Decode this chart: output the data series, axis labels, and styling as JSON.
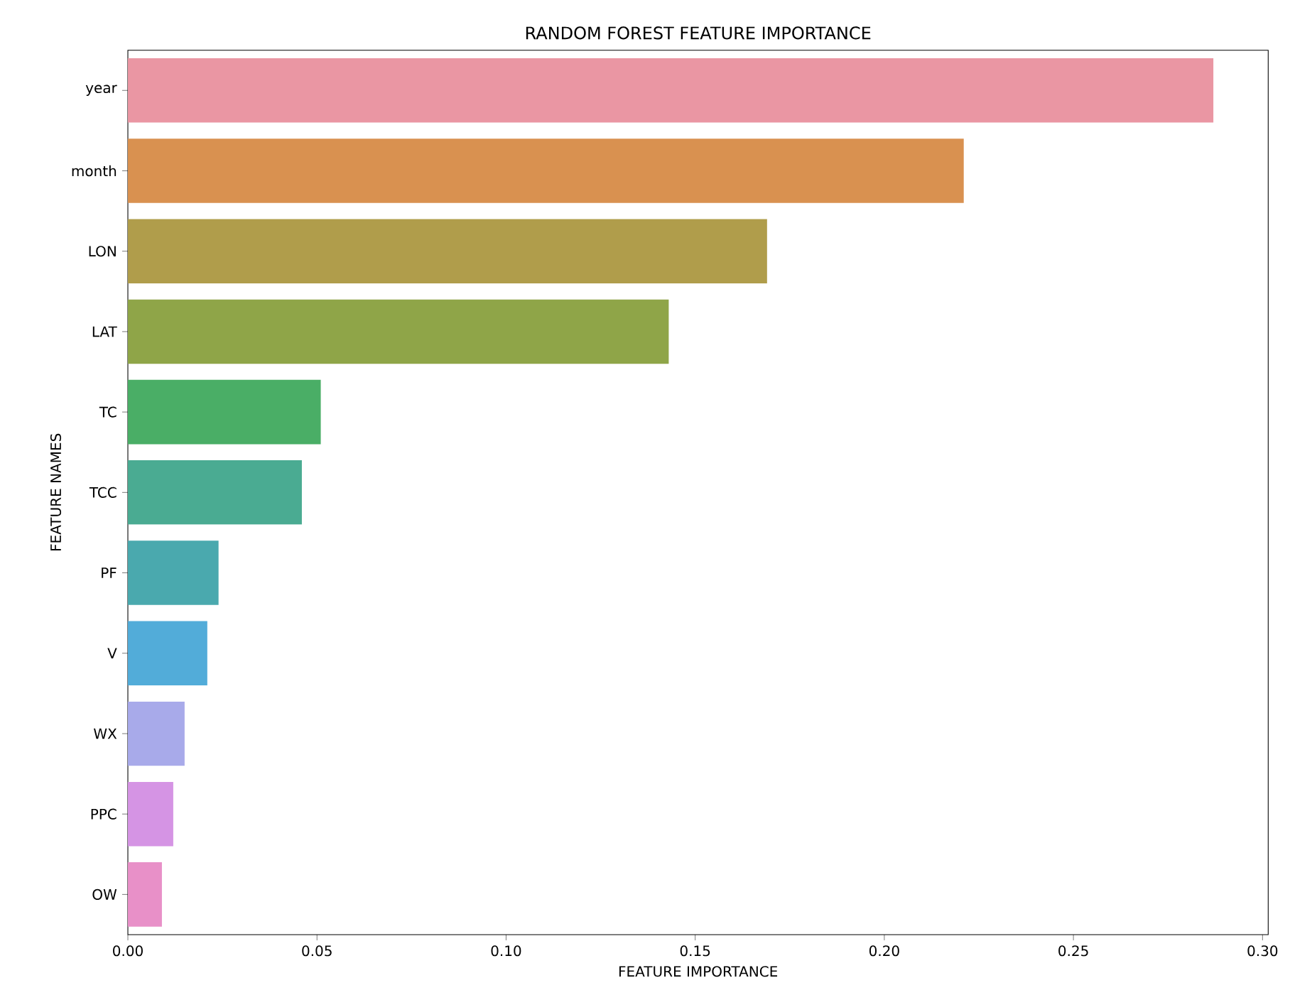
{
  "chart_data": {
    "type": "bar",
    "orientation": "horizontal",
    "title": "RANDOM FOREST FEATURE IMPORTANCE",
    "xlabel": "FEATURE IMPORTANCE",
    "ylabel": "FEATURE NAMES",
    "categories": [
      "year",
      "month",
      "LON",
      "LAT",
      "TC",
      "TCC",
      "PF",
      "V",
      "WX",
      "PPC",
      "OW"
    ],
    "values": [
      0.287,
      0.221,
      0.169,
      0.143,
      0.051,
      0.046,
      0.024,
      0.021,
      0.015,
      0.012,
      0.009
    ],
    "colors": [
      "#ea96a3",
      "#d99150",
      "#b09d4b",
      "#8fa548",
      "#4aae66",
      "#4aab92",
      "#4aa9ae",
      "#52acd9",
      "#a8aaea",
      "#d594e4",
      "#e890c8"
    ],
    "xlim": [
      0,
      0.3015
    ],
    "xticks": [
      {
        "value": 0,
        "label": "0.00"
      },
      {
        "value": 0.05,
        "label": "0.05"
      },
      {
        "value": 0.1,
        "label": "0.10"
      },
      {
        "value": 0.15,
        "label": "0.15"
      },
      {
        "value": 0.2,
        "label": "0.20"
      },
      {
        "value": 0.25,
        "label": "0.25"
      },
      {
        "value": 0.3,
        "label": "0.30"
      }
    ],
    "grid": false
  }
}
